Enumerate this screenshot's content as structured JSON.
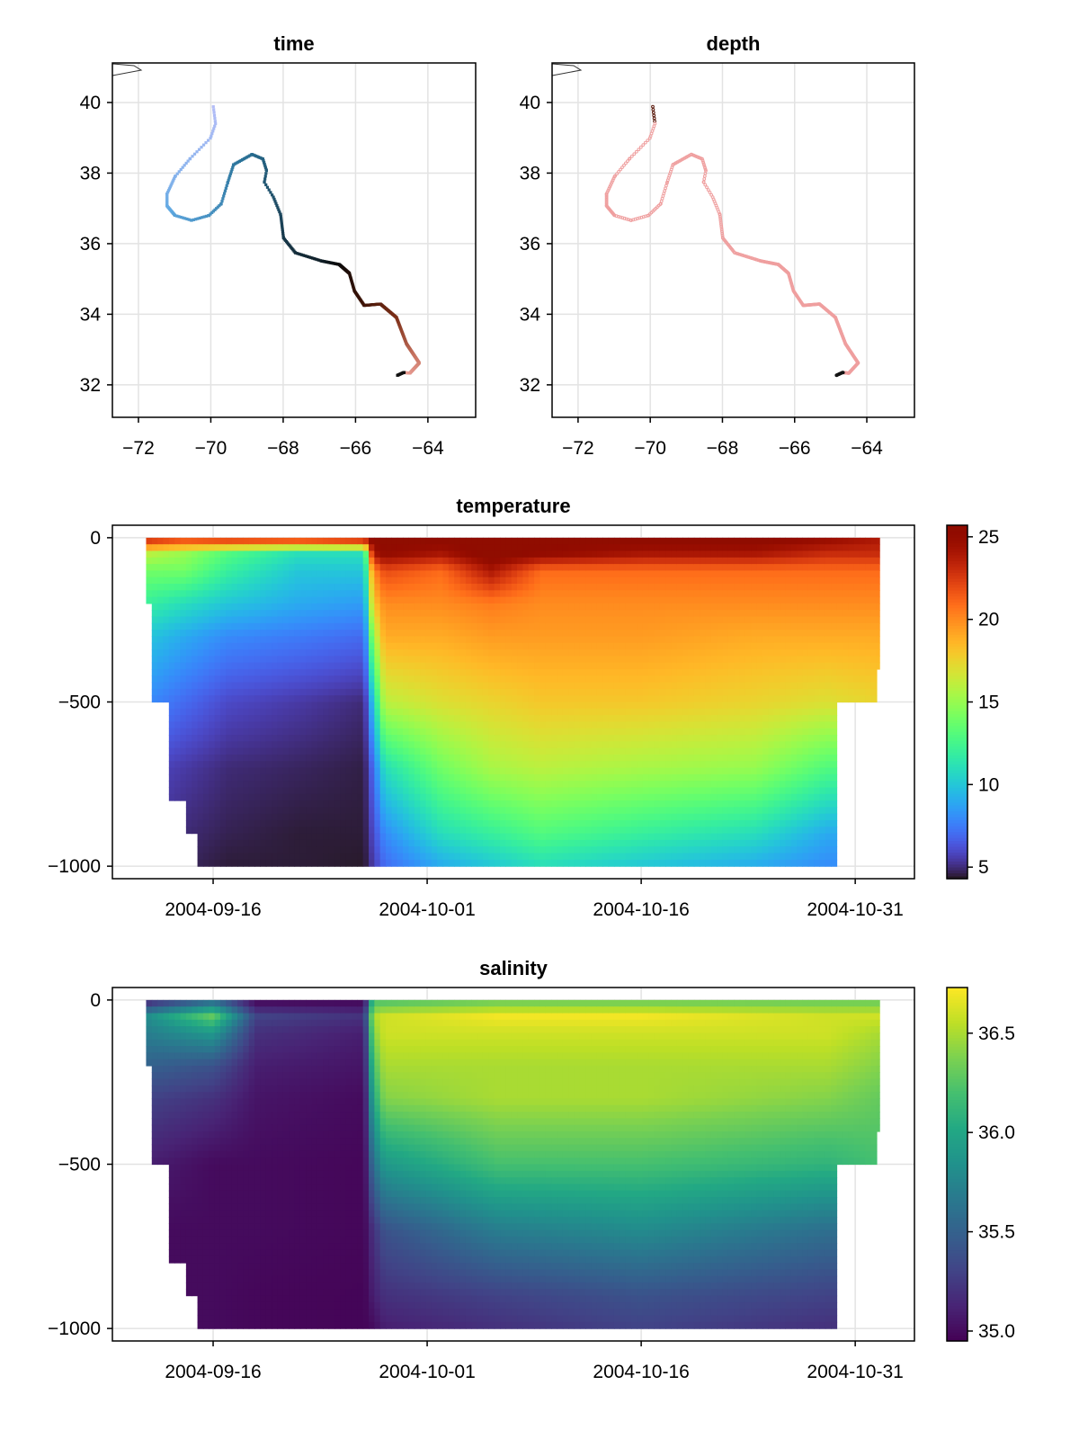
{
  "chart_data": [
    {
      "type": "scatter",
      "title": "time",
      "xlim": [
        -72.72,
        -62.68
      ],
      "ylim": [
        31.08,
        41.12
      ],
      "grid": true,
      "xticks": [
        -72,
        -70,
        -68,
        -66,
        -64
      ],
      "xtick_labels": [
        "−72",
        "−70",
        "−68",
        "−66",
        "−64"
      ],
      "yticks": [
        32,
        34,
        36,
        38,
        40
      ],
      "ytick_labels": [
        "32",
        "34",
        "36",
        "38",
        "40"
      ],
      "color_by": "time",
      "colormap_stops": [
        "#b3bdf7",
        "#5fa9e2",
        "#2a7399",
        "#17384a",
        "#0b0b0b",
        "#3a1206",
        "#7a2d16",
        "#c4705d",
        "#f3aaa3"
      ],
      "end_color": "#111111",
      "track": [
        {
          "t": -4.7,
          "lon": -69.93,
          "lat": 39.88
        },
        {
          "t": -4.0,
          "lon": -69.87,
          "lat": 39.4
        },
        {
          "t": -3.3,
          "lon": -70.01,
          "lat": 38.99
        },
        {
          "t": -2.2,
          "lon": -70.58,
          "lat": 38.4
        },
        {
          "t": -1.2,
          "lon": -70.99,
          "lat": 37.9
        },
        {
          "t": 0.0,
          "lon": -71.21,
          "lat": 37.41
        },
        {
          "t": 1.0,
          "lon": -71.21,
          "lat": 37.07
        },
        {
          "t": 2.5,
          "lon": -70.99,
          "lat": 36.8
        },
        {
          "t": 3.5,
          "lon": -70.53,
          "lat": 36.66
        },
        {
          "t": 4.5,
          "lon": -70.05,
          "lat": 36.8
        },
        {
          "t": 5.5,
          "lon": -69.71,
          "lat": 37.13
        },
        {
          "t": 6.5,
          "lon": -69.53,
          "lat": 37.74
        },
        {
          "t": 7.5,
          "lon": -69.37,
          "lat": 38.24
        },
        {
          "t": 9.0,
          "lon": -68.86,
          "lat": 38.53
        },
        {
          "t": 10.0,
          "lon": -68.56,
          "lat": 38.4
        },
        {
          "t": 10.8,
          "lon": -68.46,
          "lat": 38.07
        },
        {
          "t": 11.3,
          "lon": -68.52,
          "lat": 37.74
        },
        {
          "t": 12.0,
          "lon": -68.27,
          "lat": 37.32
        },
        {
          "t": 13.0,
          "lon": -68.07,
          "lat": 36.82
        },
        {
          "t": 14.5,
          "lon": -67.99,
          "lat": 36.16
        },
        {
          "t": 16.0,
          "lon": -67.66,
          "lat": 35.74
        },
        {
          "t": 18.0,
          "lon": -66.94,
          "lat": 35.51
        },
        {
          "t": 21.0,
          "lon": -66.45,
          "lat": 35.41
        },
        {
          "t": 24.0,
          "lon": -66.17,
          "lat": 35.16
        },
        {
          "t": 26.0,
          "lon": -66.03,
          "lat": 34.66
        },
        {
          "t": 28.0,
          "lon": -65.76,
          "lat": 34.25
        },
        {
          "t": 31.0,
          "lon": -65.31,
          "lat": 34.29
        },
        {
          "t": 34.0,
          "lon": -64.87,
          "lat": 33.91
        },
        {
          "t": 38.0,
          "lon": -64.59,
          "lat": 33.16
        },
        {
          "t": 42.0,
          "lon": -64.24,
          "lat": 32.62
        },
        {
          "t": 44.5,
          "lon": -64.5,
          "lat": 32.33
        },
        {
          "t": 45.8,
          "lon": -64.67,
          "lat": 32.35
        },
        {
          "t": 46.7,
          "lon": -64.84,
          "lat": 32.27
        }
      ]
    },
    {
      "type": "scatter",
      "title": "depth",
      "xlim": [
        -72.72,
        -62.68
      ],
      "ylim": [
        31.08,
        41.12
      ],
      "grid": true,
      "xticks": [
        -72,
        -70,
        -68,
        -66,
        -64
      ],
      "xtick_labels": [
        "−72",
        "−70",
        "−68",
        "−66",
        "−64"
      ],
      "yticks": [
        32,
        34,
        36,
        38,
        40
      ],
      "ytick_labels": [
        "32",
        "34",
        "36",
        "38",
        "40"
      ],
      "color_by": "depth",
      "track_source": "time",
      "colors": {
        "main": "#ef9f9f",
        "start": "#5a1a0c",
        "end": "#111111"
      }
    },
    {
      "type": "heatmap",
      "title": "temperature",
      "x_origin": "2004-09-16",
      "x_unit": "days",
      "xlim": [
        -7.06,
        49.15
      ],
      "ylim": [
        -1038,
        38
      ],
      "grid": true,
      "xticks": [
        0,
        15,
        30,
        45
      ],
      "xtick_labels": [
        "2004-09-16",
        "2004-10-01",
        "2004-10-16",
        "2004-10-31"
      ],
      "yticks": [
        0,
        -500,
        -1000
      ],
      "ytick_labels": [
        "0",
        "−500",
        "−1000"
      ],
      "colormap": "turbo",
      "colorbar": {
        "range": [
          4.3,
          25.7
        ],
        "ticks": [
          5,
          10,
          15,
          20,
          25
        ],
        "tick_labels": [
          "5",
          "10",
          "15",
          "20",
          "25"
        ]
      },
      "depth_levels": [
        0,
        50,
        100,
        200,
        300,
        500,
        700,
        900,
        1000
      ],
      "max_depth": [
        {
          "from": -4.7,
          "to": -4.4,
          "depth": 200
        },
        {
          "from": -4.4,
          "to": -3.4,
          "depth": 500
        },
        {
          "from": -3.4,
          "to": -2.0,
          "depth": 800
        },
        {
          "from": -2.0,
          "to": -1.2,
          "depth": 900
        },
        {
          "from": -1.2,
          "to": 43.6,
          "depth": 1000
        },
        {
          "from": 43.6,
          "to": 46.2,
          "depth": 500
        },
        {
          "from": 46.2,
          "to": 46.7,
          "depth": 400
        }
      ],
      "profiles": [
        {
          "day": -4.7,
          "values": [
            24,
            16,
            14,
            12,
            10,
            8,
            6,
            5.5,
            5
          ]
        },
        {
          "day": -2.0,
          "values": [
            23,
            15,
            14,
            11,
            9,
            7,
            5.5,
            5,
            4.8
          ]
        },
        {
          "day": 1.0,
          "values": [
            24,
            13,
            12,
            10,
            8,
            6,
            5,
            4.7,
            4.5
          ]
        },
        {
          "day": 6.0,
          "values": [
            24,
            11,
            10,
            9,
            7.5,
            5.5,
            4.8,
            4.5,
            4.5
          ]
        },
        {
          "day": 10.6,
          "values": [
            25,
            11,
            10,
            8.5,
            7,
            5,
            4.6,
            4.5,
            4.4
          ]
        },
        {
          "day": 11.2,
          "values": [
            26,
            24,
            20,
            18,
            15,
            10,
            7,
            6,
            5.5
          ]
        },
        {
          "day": 12.0,
          "values": [
            26,
            25,
            22,
            20,
            19,
            16,
            11,
            8,
            7
          ]
        },
        {
          "day": 16.0,
          "values": [
            26,
            24,
            21,
            20,
            19,
            17,
            14,
            11,
            9
          ]
        },
        {
          "day": 19.5,
          "values": [
            26,
            26,
            24,
            20.5,
            19.5,
            17.5,
            15.5,
            12,
            10
          ]
        },
        {
          "day": 23.0,
          "values": [
            26,
            25,
            21,
            20,
            19.5,
            18,
            16,
            13,
            11
          ]
        },
        {
          "day": 30.0,
          "values": [
            26,
            24,
            21,
            20,
            19.5,
            18,
            15.5,
            12,
            10
          ]
        },
        {
          "day": 38.0,
          "values": [
            26,
            24,
            21,
            20,
            19,
            17.5,
            15,
            11,
            9
          ]
        },
        {
          "day": 43.0,
          "values": [
            25,
            23,
            21,
            20,
            19,
            17,
            13,
            9,
            8
          ]
        },
        {
          "day": 46.7,
          "values": [
            24,
            23,
            21,
            20,
            19,
            17.5,
            13,
            9,
            8
          ]
        }
      ]
    },
    {
      "type": "heatmap",
      "title": "salinity",
      "x_origin": "2004-09-16",
      "x_unit": "days",
      "xlim": [
        -7.06,
        49.15
      ],
      "ylim": [
        -1038,
        38
      ],
      "grid": true,
      "xticks": [
        0,
        15,
        30,
        45
      ],
      "xtick_labels": [
        "2004-09-16",
        "2004-10-01",
        "2004-10-16",
        "2004-10-31"
      ],
      "yticks": [
        0,
        -500,
        -1000
      ],
      "ytick_labels": [
        "0",
        "−500",
        "−1000"
      ],
      "colormap": "viridis",
      "colorbar": {
        "range": [
          34.95,
          36.73
        ],
        "ticks": [
          35.0,
          35.5,
          36.0,
          36.5
        ],
        "tick_labels": [
          "35.0",
          "35.5",
          "36.0",
          "36.5"
        ]
      },
      "depth_levels": [
        0,
        50,
        100,
        200,
        300,
        500,
        700,
        900,
        1000
      ],
      "max_depth": [
        {
          "from": -4.7,
          "to": -4.4,
          "depth": 200
        },
        {
          "from": -4.4,
          "to": -3.4,
          "depth": 500
        },
        {
          "from": -3.4,
          "to": -2.0,
          "depth": 800
        },
        {
          "from": -2.0,
          "to": -1.2,
          "depth": 900
        },
        {
          "from": -1.2,
          "to": 43.6,
          "depth": 1000
        },
        {
          "from": 43.6,
          "to": 46.2,
          "depth": 500
        },
        {
          "from": 46.2,
          "to": 46.7,
          "depth": 400
        }
      ],
      "profiles": [
        {
          "day": -4.7,
          "values": [
            35.1,
            35.8,
            35.7,
            35.5,
            35.3,
            35.1,
            35.0,
            35.0,
            35.0
          ]
        },
        {
          "day": 0.0,
          "values": [
            35.5,
            36.3,
            35.9,
            35.4,
            35.2,
            35.0,
            35.0,
            35.0,
            35.0
          ]
        },
        {
          "day": 3.0,
          "values": [
            34.96,
            35.3,
            35.2,
            35.1,
            35.05,
            35.0,
            35.0,
            34.98,
            34.98
          ]
        },
        {
          "day": 10.6,
          "values": [
            34.96,
            35.2,
            35.1,
            35.05,
            35.0,
            34.98,
            34.98,
            34.97,
            34.97
          ]
        },
        {
          "day": 11.2,
          "values": [
            36.2,
            36.5,
            36.4,
            36.2,
            36.0,
            35.6,
            35.2,
            35.1,
            35.0
          ]
        },
        {
          "day": 12.0,
          "values": [
            36.2,
            36.6,
            36.6,
            36.5,
            36.4,
            35.9,
            35.4,
            35.2,
            35.1
          ]
        },
        {
          "day": 20.0,
          "values": [
            36.3,
            36.7,
            36.6,
            36.5,
            36.5,
            36.2,
            35.7,
            35.3,
            35.2
          ]
        },
        {
          "day": 30.0,
          "values": [
            36.3,
            36.7,
            36.6,
            36.5,
            36.5,
            36.2,
            35.8,
            35.4,
            35.3
          ]
        },
        {
          "day": 43.0,
          "values": [
            36.3,
            36.6,
            36.6,
            36.5,
            36.4,
            36.1,
            35.6,
            35.3,
            35.2
          ]
        },
        {
          "day": 46.7,
          "values": [
            36.3,
            36.6,
            36.5,
            36.4,
            36.3,
            36.2,
            35.6,
            35.3,
            35.2
          ]
        }
      ]
    }
  ]
}
